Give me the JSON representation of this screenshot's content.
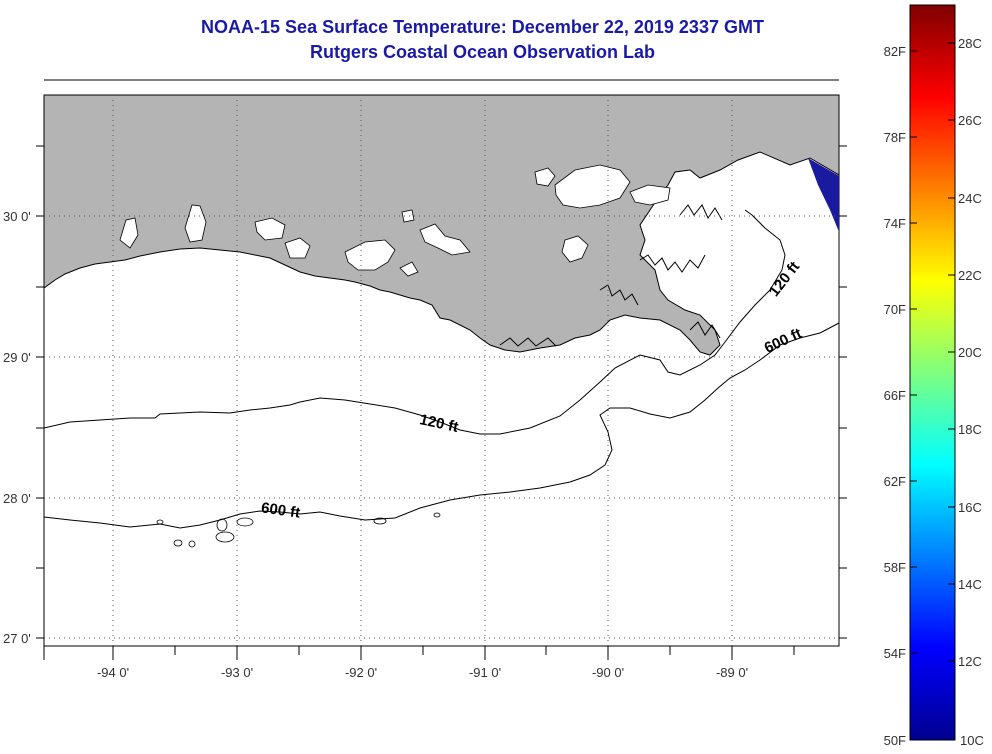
{
  "title": {
    "line1": "NOAA-15 Sea Surface Temperature:  December 22, 2019 2337 GMT",
    "line2": "Rutgers Coastal Ocean Observation Lab"
  },
  "axes": {
    "lat_labels": [
      "30 0'",
      "29 0'",
      "28 0'",
      "27 0'"
    ],
    "lon_labels": [
      "-94 0'",
      "-93 0'",
      "-92 0'",
      "-91 0'",
      "-90 0'",
      "-89 0'"
    ]
  },
  "contours": {
    "shallow_label": "120 ft",
    "deep_label": "600 ft"
  },
  "colorbar": {
    "fahrenheit_labels": [
      "82F",
      "78F",
      "74F",
      "70F",
      "66F",
      "62F",
      "58F",
      "54F",
      "50F"
    ],
    "celsius_labels": [
      "28C",
      "26C",
      "24C",
      "22C",
      "20C",
      "18C",
      "16C",
      "14C",
      "12C",
      "10C"
    ]
  },
  "colors": {
    "title": "#1a1aa8",
    "land": "#b4b4b4",
    "water": "#ffffff",
    "sst_cold": "#1a1aa0"
  }
}
